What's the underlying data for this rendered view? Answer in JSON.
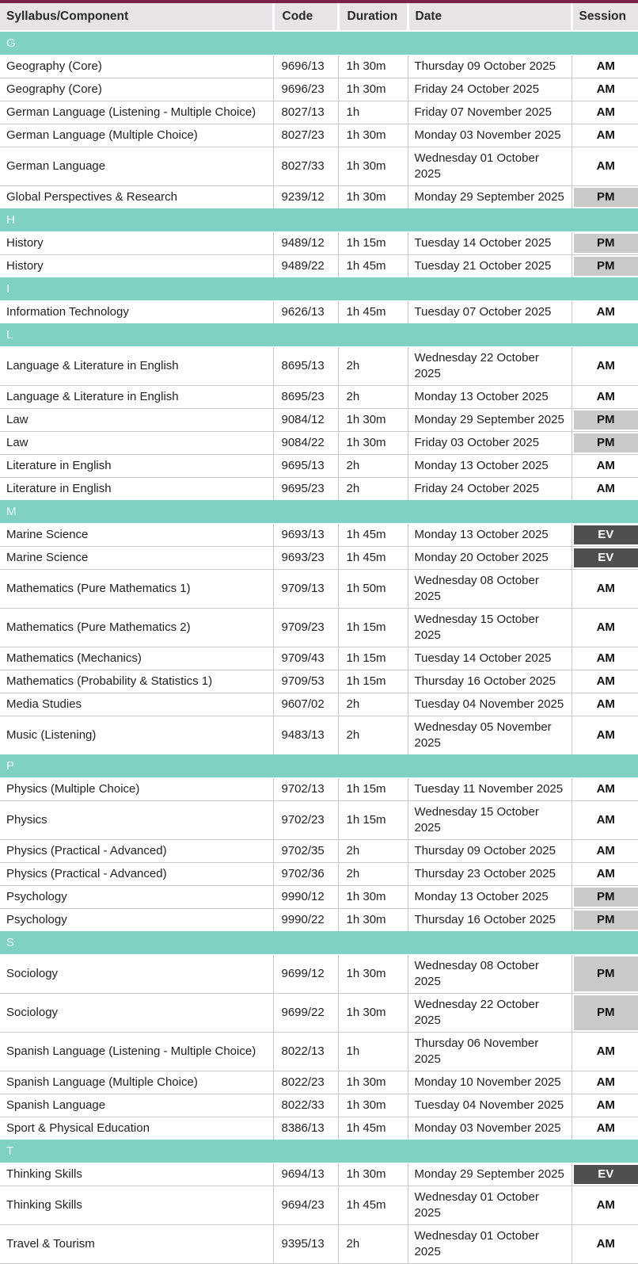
{
  "theme": {
    "top_border_color": "#7d2248",
    "header_bg": "#e7e3e6",
    "section_bar_color": "#7fd1c4",
    "grid_line_color": "#c9c9c9",
    "session_colors": {
      "AM": {
        "bg": "#ffffff",
        "text": "#111111"
      },
      "PM": {
        "bg": "#c9c9c9",
        "text": "#111111"
      },
      "EV": {
        "bg": "#4f4f4f",
        "text": "#ffffff"
      }
    }
  },
  "table": {
    "headers": [
      "Syllabus/Component",
      "Code",
      "Duration",
      "Date",
      "Session"
    ],
    "sections": [
      {
        "letter": "G",
        "rows": [
          {
            "syllabus": "Geography (Core)",
            "code": "9696/13",
            "duration": "1h 30m",
            "date": "Thursday 09 October 2025",
            "session": "AM"
          },
          {
            "syllabus": "Geography (Core)",
            "code": "9696/23",
            "duration": "1h 30m",
            "date": "Friday 24 October 2025",
            "session": "AM"
          },
          {
            "syllabus": "German Language (Listening - Multiple Choice)",
            "code": "8027/13",
            "duration": "1h",
            "date": "Friday 07 November 2025",
            "session": "AM"
          },
          {
            "syllabus": "German Language (Multiple Choice)",
            "code": "8027/23",
            "duration": "1h 30m",
            "date": "Monday 03 November 2025",
            "session": "AM"
          },
          {
            "syllabus": "German Language",
            "code": "8027/33",
            "duration": "1h 30m",
            "date": "Wednesday 01 October 2025",
            "session": "AM"
          },
          {
            "syllabus": "Global Perspectives & Research",
            "code": "9239/12",
            "duration": "1h 30m",
            "date": "Monday 29 September 2025",
            "session": "PM"
          }
        ]
      },
      {
        "letter": "H",
        "rows": [
          {
            "syllabus": "History",
            "code": "9489/12",
            "duration": "1h 15m",
            "date": "Tuesday 14 October 2025",
            "session": "PM"
          },
          {
            "syllabus": "History",
            "code": "9489/22",
            "duration": "1h 45m",
            "date": "Tuesday 21 October 2025",
            "session": "PM"
          }
        ]
      },
      {
        "letter": "I",
        "rows": [
          {
            "syllabus": "Information Technology",
            "code": "9626/13",
            "duration": "1h 45m",
            "date": "Tuesday 07 October 2025",
            "session": "AM"
          }
        ]
      },
      {
        "letter": "L",
        "rows": [
          {
            "syllabus": "Language & Literature in English",
            "code": "8695/13",
            "duration": "2h",
            "date": "Wednesday 22 October\n2025",
            "session": "AM"
          },
          {
            "syllabus": "Language & Literature in English",
            "code": "8695/23",
            "duration": "2h",
            "date": "Monday 13 October 2025",
            "session": "AM"
          },
          {
            "syllabus": "Law",
            "code": "9084/12",
            "duration": "1h 30m",
            "date": "Monday 29 September 2025",
            "session": "PM"
          },
          {
            "syllabus": "Law",
            "code": "9084/22",
            "duration": "1h 30m",
            "date": "Friday 03 October 2025",
            "session": "PM"
          },
          {
            "syllabus": "Literature in English",
            "code": "9695/13",
            "duration": "2h",
            "date": "Monday 13 October 2025",
            "session": "AM"
          },
          {
            "syllabus": "Literature in English",
            "code": "9695/23",
            "duration": "2h",
            "date": "Friday 24 October 2025",
            "session": "AM"
          }
        ]
      },
      {
        "letter": "M",
        "rows": [
          {
            "syllabus": "Marine Science",
            "code": "9693/13",
            "duration": "1h 45m",
            "date": "Monday 13 October 2025",
            "session": "EV"
          },
          {
            "syllabus": "Marine Science",
            "code": "9693/23",
            "duration": "1h 45m",
            "date": "Monday 20 October 2025",
            "session": "EV"
          },
          {
            "syllabus": "Mathematics (Pure Mathematics 1)",
            "code": "9709/13",
            "duration": "1h 50m",
            "date": "Wednesday 08 October\n2025",
            "session": "AM"
          },
          {
            "syllabus": "Mathematics (Pure Mathematics 2)",
            "code": "9709/23",
            "duration": "1h 15m",
            "date": "Wednesday 15 October 2025",
            "session": "AM"
          },
          {
            "syllabus": "Mathematics (Mechanics)",
            "code": "9709/43",
            "duration": "1h 15m",
            "date": "Tuesday 14 October 2025",
            "session": "AM"
          },
          {
            "syllabus": "Mathematics (Probability & Statistics 1)",
            "code": "9709/53",
            "duration": "1h 15m",
            "date": "Thursday 16 October 2025",
            "session": "AM"
          },
          {
            "syllabus": "Media Studies",
            "code": "9607/02",
            "duration": "2h",
            "date": "Tuesday 04 November 2025",
            "session": "AM"
          },
          {
            "syllabus": "Music (Listening)",
            "code": "9483/13",
            "duration": "2h",
            "date": "Wednesday 05 November\n2025",
            "session": "AM"
          }
        ]
      },
      {
        "letter": "P",
        "rows": [
          {
            "syllabus": "Physics (Multiple Choice)",
            "code": "9702/13",
            "duration": "1h 15m",
            "date": "Tuesday 11 November 2025",
            "session": "AM"
          },
          {
            "syllabus": "Physics",
            "code": "9702/23",
            "duration": "1h 15m",
            "date": "Wednesday 15 October 2025",
            "session": "AM"
          },
          {
            "syllabus": "Physics (Practical - Advanced)",
            "code": "9702/35",
            "duration": "2h",
            "date": "Thursday 09 October 2025",
            "session": "AM"
          },
          {
            "syllabus": "Physics (Practical - Advanced)",
            "code": "9702/36",
            "duration": "2h",
            "date": "Thursday 23 October 2025",
            "session": "AM"
          },
          {
            "syllabus": "Psychology",
            "code": "9990/12",
            "duration": "1h 30m",
            "date": "Monday 13 October 2025",
            "session": "PM"
          },
          {
            "syllabus": "Psychology",
            "code": "9990/22",
            "duration": "1h 30m",
            "date": "Thursday 16 October 2025",
            "session": "PM"
          }
        ]
      },
      {
        "letter": "S",
        "rows": [
          {
            "syllabus": "Sociology",
            "code": "9699/12",
            "duration": "1h 30m",
            "date": "Wednesday 08 October\n2025",
            "session": "PM"
          },
          {
            "syllabus": "Sociology",
            "code": "9699/22",
            "duration": "1h 30m",
            "date": "Wednesday 22 October\n2025",
            "session": "PM"
          },
          {
            "syllabus": "Spanish Language (Listening - Multiple Choice)",
            "code": "8022/13",
            "duration": "1h",
            "date": "Thursday 06 November\n2025",
            "session": "AM"
          },
          {
            "syllabus": "Spanish Language (Multiple Choice)",
            "code": "8022/23",
            "duration": "1h 30m",
            "date": "Monday 10 November 2025",
            "session": "AM"
          },
          {
            "syllabus": "Spanish Language",
            "code": "8022/33",
            "duration": "1h 30m",
            "date": "Tuesday 04 November 2025",
            "session": "AM"
          },
          {
            "syllabus": "Sport & Physical Education",
            "code": "8386/13",
            "duration": "1h 45m",
            "date": "Monday 03 November 2025",
            "session": "AM"
          }
        ]
      },
      {
        "letter": "T",
        "rows": [
          {
            "syllabus": "Thinking Skills",
            "code": "9694/13",
            "duration": "1h 30m",
            "date": "Monday 29 September 2025",
            "session": "EV"
          },
          {
            "syllabus": "Thinking Skills",
            "code": "9694/23",
            "duration": "1h 45m",
            "date": "Wednesday 01 October 2025",
            "session": "AM"
          },
          {
            "syllabus": "Travel & Tourism",
            "code": "9395/13",
            "duration": "2h",
            "date": "Wednesday 01 October 2025",
            "session": "AM"
          }
        ]
      }
    ]
  }
}
